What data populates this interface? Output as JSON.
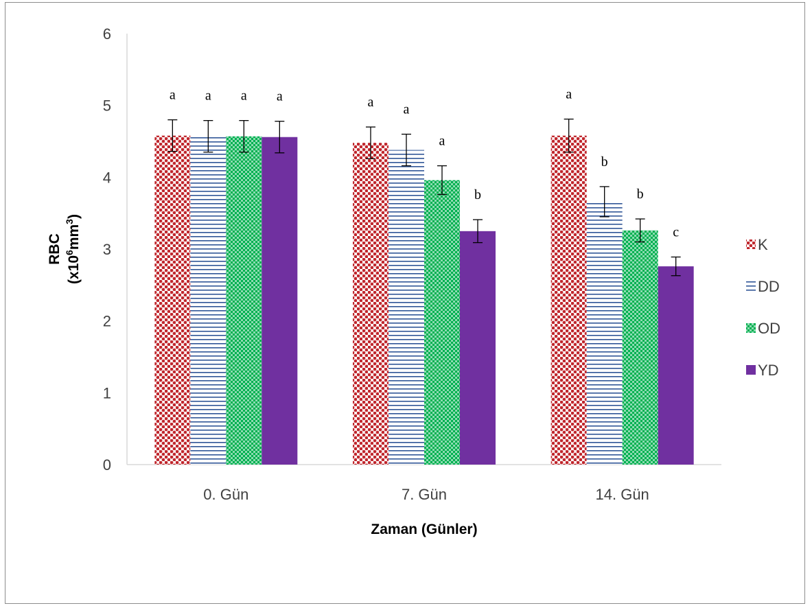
{
  "chart_data": {
    "type": "bar",
    "categories": [
      "0. Gün",
      "7. Gün",
      "14. Gün"
    ],
    "series": [
      {
        "name": "K",
        "values": [
          4.58,
          4.48,
          4.58
        ],
        "errors": [
          0.22,
          0.22,
          0.23
        ],
        "labels": [
          "a",
          "a",
          "a"
        ],
        "color": "#c0272d",
        "pattern": "dots"
      },
      {
        "name": "DD",
        "values": [
          4.57,
          4.38,
          3.66
        ],
        "errors": [
          0.22,
          0.22,
          0.21
        ],
        "labels": [
          "a",
          "a",
          "b"
        ],
        "color": "#2f5597",
        "pattern": "hlines"
      },
      {
        "name": "OD",
        "values": [
          4.57,
          3.96,
          3.26
        ],
        "errors": [
          0.22,
          0.2,
          0.16
        ],
        "labels": [
          "a",
          "a",
          "b"
        ],
        "color": "#00b050",
        "pattern": "checks"
      },
      {
        "name": "YD",
        "values": [
          4.56,
          3.25,
          2.76
        ],
        "errors": [
          0.22,
          0.16,
          0.13
        ],
        "labels": [
          "a",
          "b",
          "c"
        ],
        "color": "#7030a0",
        "pattern": "solid"
      }
    ],
    "ylim": [
      0,
      6
    ],
    "yticks": [
      "0",
      "1",
      "2",
      "3",
      "4",
      "5",
      "6"
    ],
    "xlabel": "Zaman (Günler)",
    "ylabel_line1": "RBC",
    "ylabel_line2_prefix": "(x10",
    "ylabel_sup1": "6",
    "ylabel_mid": "mm",
    "ylabel_sup2": "3",
    "ylabel_suffix": ")",
    "legend_position": "right",
    "grid": false
  }
}
